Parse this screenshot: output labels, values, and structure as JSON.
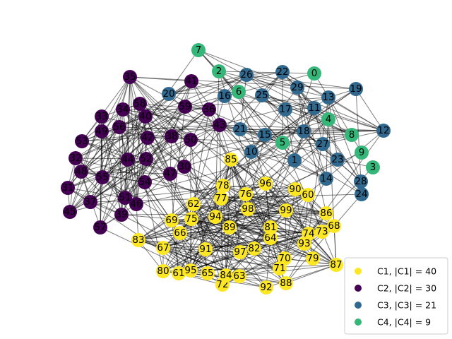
{
  "legend": {
    "entries": [
      {
        "label": "C1, |C1| = 40",
        "color": "#fde725"
      },
      {
        "label": "C2, |C2| = 30",
        "color": "#440154"
      },
      {
        "label": "C3, |C3| = 21",
        "color": "#31688e"
      },
      {
        "label": "C4, |C4| = 9",
        "color": "#35b779"
      }
    ]
  },
  "communities": {
    "C1": [
      "60",
      "61",
      "62",
      "63",
      "64",
      "65",
      "66",
      "67",
      "68",
      "69",
      "70",
      "71",
      "72",
      "73",
      "74",
      "75",
      "76",
      "77",
      "78",
      "79",
      "80",
      "81",
      "82",
      "83",
      "84",
      "85",
      "86",
      "87",
      "88",
      "89",
      "90",
      "91",
      "92",
      "93",
      "94",
      "95",
      "96",
      "97",
      "98",
      "99"
    ],
    "C2": [
      "30",
      "31",
      "32",
      "33",
      "34",
      "35",
      "36",
      "37",
      "38",
      "39",
      "40",
      "41",
      "42",
      "43",
      "44",
      "45",
      "46",
      "47",
      "48",
      "49",
      "50",
      "51",
      "52",
      "53",
      "54",
      "55",
      "56",
      "57",
      "58",
      "59"
    ],
    "C3": [
      "1",
      "10",
      "11",
      "12",
      "13",
      "14",
      "15",
      "16",
      "17",
      "18",
      "19",
      "20",
      "21",
      "22",
      "23",
      "24",
      "25",
      "26",
      "27",
      "28",
      "29"
    ],
    "C4": [
      "0",
      "2",
      "3",
      "4",
      "5",
      "6",
      "7",
      "8",
      "9"
    ]
  }
}
